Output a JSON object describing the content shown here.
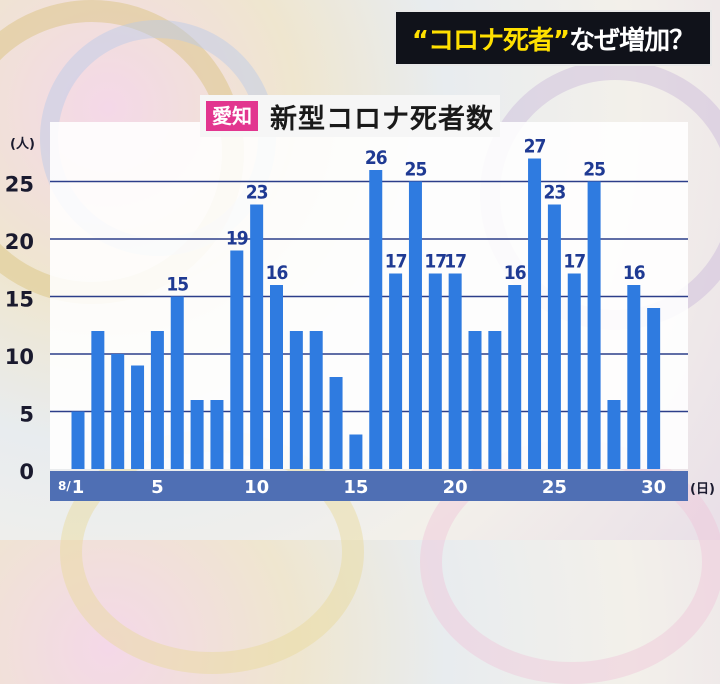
{
  "headline": {
    "quoted": "“コロナ死者”",
    "rest": "なぜ増加？"
  },
  "chart_data": {
    "type": "bar",
    "region_badge": "愛知",
    "title": "新型コロナ死者数",
    "y_unit": "(人)",
    "x_unit": "(日)",
    "month_label": "8/",
    "ylim": [
      0,
      28
    ],
    "yticks": [
      0,
      5,
      10,
      15,
      20,
      25
    ],
    "xtick_labels": {
      "1": "1",
      "5": "5",
      "10": "10",
      "15": "15",
      "20": "20",
      "25": "25",
      "30": "30"
    },
    "categories": [
      1,
      2,
      3,
      4,
      5,
      6,
      7,
      8,
      9,
      10,
      11,
      12,
      13,
      14,
      15,
      16,
      17,
      18,
      19,
      20,
      21,
      22,
      23,
      24,
      25,
      26,
      27,
      28,
      29,
      30
    ],
    "values": [
      5,
      12,
      10,
      9,
      12,
      15,
      6,
      6,
      19,
      23,
      16,
      12,
      12,
      8,
      3,
      26,
      17,
      25,
      17,
      17,
      12,
      12,
      16,
      27,
      23,
      17,
      25,
      6,
      16,
      14
    ],
    "labeled_days": [
      6,
      9,
      10,
      11,
      16,
      17,
      18,
      19,
      20,
      23,
      24,
      25,
      26,
      27,
      29
    ],
    "bar_color": "#2f7be0",
    "grid": true
  }
}
